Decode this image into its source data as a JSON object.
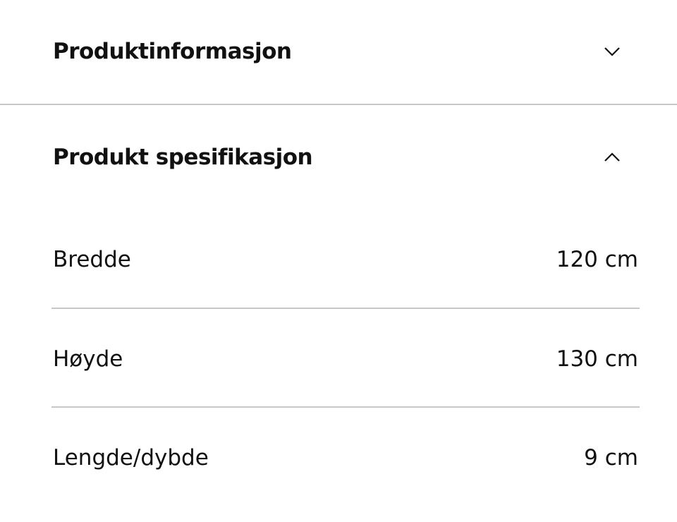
{
  "sections": [
    {
      "title": "Produktinformasjon",
      "expanded": false,
      "icon": "chevron-down-icon"
    },
    {
      "title": "Produkt spesifikasjon",
      "expanded": true,
      "icon": "chevron-up-icon"
    }
  ],
  "specs": [
    {
      "label": "Bredde",
      "value": "120 cm"
    },
    {
      "label": "Høyde",
      "value": "130 cm"
    },
    {
      "label": "Lengde/dybde",
      "value": "9 cm"
    }
  ]
}
